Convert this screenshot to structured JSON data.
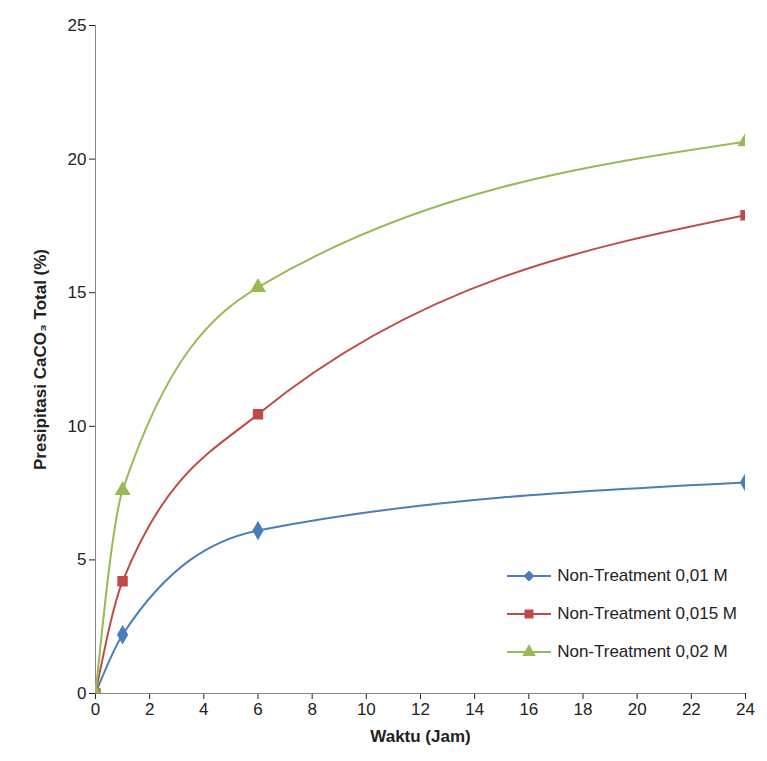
{
  "chart_data": {
    "type": "line",
    "x_label": "Waktu (Jam)",
    "y_label": "Presipitasi CaCO₃ Total (%)",
    "x": [
      0,
      1,
      6,
      24
    ],
    "series": [
      {
        "name": "Non-Treatment 0,01 M",
        "color": "#4a7ebb",
        "marker": "diamond",
        "values": [
          0,
          2.2,
          6.1,
          7.9
        ]
      },
      {
        "name": "Non-Treatment 0,015 M",
        "color": "#be4b48",
        "marker": "square",
        "values": [
          0,
          4.2,
          10.45,
          17.9
        ]
      },
      {
        "name": "Non-Treatment 0,02 M",
        "color": "#98b954",
        "marker": "triangle",
        "values": [
          0,
          7.6,
          15.2,
          20.65
        ]
      }
    ],
    "xlim": [
      0,
      24
    ],
    "xticks": [
      0,
      2,
      4,
      6,
      8,
      10,
      12,
      14,
      16,
      18,
      20,
      22,
      24
    ],
    "ylim": [
      0,
      25
    ],
    "yticks": [
      0,
      5,
      10,
      15,
      20,
      25
    ],
    "grid": false,
    "legend": "lower right"
  }
}
